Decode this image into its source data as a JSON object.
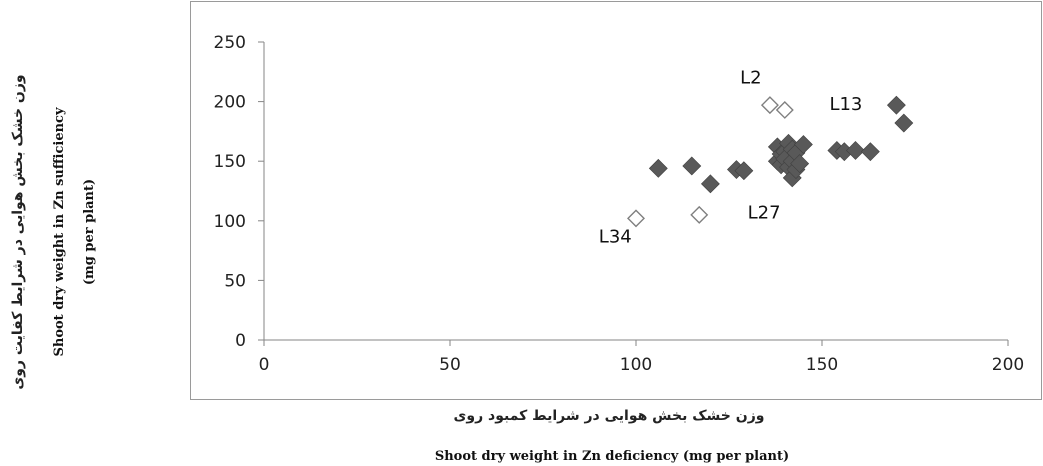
{
  "chart_data": {
    "type": "scatter",
    "xlim": [
      0,
      200
    ],
    "ylim": [
      0,
      250
    ],
    "x_ticks": [
      0,
      50,
      100,
      150,
      200
    ],
    "y_ticks": [
      0,
      50,
      100,
      150,
      200,
      250
    ],
    "grid": false,
    "legend": "none",
    "xlabel_fa": "وزن خشک بخش هوایی در شرایط کمبود روی",
    "xlabel_en": "Shoot dry weight in Zn deficiency (mg per plant)",
    "ylabel_fa": "وزن خشک بخش هوایی در شرایط کفایت روی",
    "ylabel_en_1": "Shoot dry weight in Zn sufficiency",
    "ylabel_en_2": "(mg per plant)",
    "colors": {
      "filled": "#595959",
      "open_stroke": "#7f7f7f",
      "axis": "#868686",
      "frame": "#9a9a9a"
    },
    "series": [
      {
        "marker": "filled-diamond",
        "points": [
          [
            106,
            144
          ],
          [
            115,
            146
          ],
          [
            120,
            131
          ],
          [
            127,
            143
          ],
          [
            129,
            142
          ],
          [
            138,
            162
          ],
          [
            138,
            150
          ],
          [
            139,
            156
          ],
          [
            139,
            147
          ],
          [
            140,
            158
          ],
          [
            140,
            152
          ],
          [
            141,
            145
          ],
          [
            141,
            165
          ],
          [
            142,
            160
          ],
          [
            142,
            136
          ],
          [
            142,
            150
          ],
          [
            143,
            157
          ],
          [
            143,
            143
          ],
          [
            144,
            148
          ],
          [
            145,
            164
          ],
          [
            154,
            159
          ],
          [
            156,
            158
          ],
          [
            159,
            159
          ],
          [
            163,
            158
          ],
          [
            170,
            197
          ],
          [
            172,
            182
          ]
        ]
      },
      {
        "marker": "open-diamond",
        "points": [
          [
            136,
            197
          ],
          [
            140,
            193
          ],
          [
            117,
            105
          ],
          [
            100,
            102
          ]
        ]
      }
    ],
    "annotations": [
      {
        "text": "L2",
        "x": 128,
        "y": 215
      },
      {
        "text": "L13",
        "x": 152,
        "y": 193
      },
      {
        "text": "L27",
        "x": 130,
        "y": 102
      },
      {
        "text": "L34",
        "x": 90,
        "y": 82
      }
    ]
  }
}
